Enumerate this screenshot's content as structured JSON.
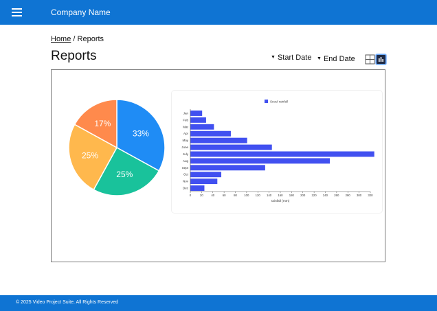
{
  "header": {
    "title": "Company Name",
    "menu_icon": "hamburger-menu-icon"
  },
  "breadcrumb": {
    "home": "Home",
    "separator": " / ",
    "current": "Reports"
  },
  "page": {
    "title": "Reports"
  },
  "toolbar": {
    "start_date_label": "Start Date",
    "end_date_label": "End Date",
    "caret_icon": "caret-down-icon",
    "grid_view_icon": "grid-view-icon",
    "chart_view_icon": "bar-chart-icon",
    "active_view": "chart"
  },
  "footer": {
    "text": "© 2025 Video Project Suite.  All Rights Reserved"
  },
  "colors": {
    "brand": "#0f74d3"
  },
  "chart_data": [
    {
      "type": "pie",
      "labels": [
        "33%",
        "25%",
        "25%",
        "17%"
      ],
      "values": [
        33,
        25,
        25,
        17
      ],
      "colors": [
        "#1f8cf5",
        "#19c29b",
        "#ffb84d",
        "#ff8a4c"
      ],
      "start_angle_deg": 0,
      "direction": "clockwise"
    },
    {
      "type": "bar",
      "orientation": "horizontal",
      "categories": [
        "Jan",
        "Feb",
        "Mar",
        "Apr",
        "May",
        "June",
        "July",
        "Aug",
        "Sept",
        "Oct",
        "Nov",
        "Dec"
      ],
      "series": [
        {
          "name": "Seoul rainfall",
          "values": [
            21,
            28,
            42,
            72,
            101,
            145,
            327,
            248,
            133,
            55,
            48,
            25
          ],
          "color": "#4150f0"
        }
      ],
      "xlabel": "rainfall (mm)",
      "xlim": [
        0,
        320
      ],
      "xticks": [
        0,
        20,
        40,
        60,
        80,
        100,
        120,
        140,
        160,
        180,
        200,
        220,
        240,
        260,
        280,
        300,
        320
      ],
      "legend": "top"
    }
  ]
}
